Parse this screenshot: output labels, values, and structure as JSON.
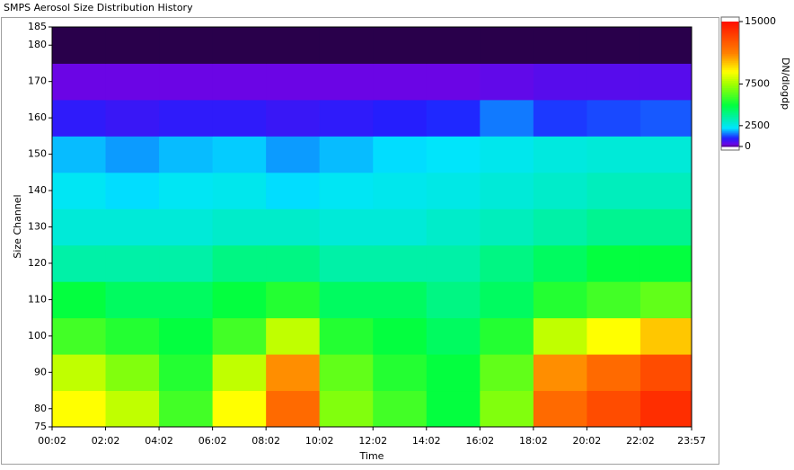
{
  "chart_data": {
    "type": "heatmap",
    "title": "SMPS Aerosol Size Distribution History",
    "x_label": "Time",
    "y_label": "Size Channel",
    "colorbar_label": "DN/dlogdp",
    "xlim": [
      2,
      1437
    ],
    "xticks": [
      {
        "value": 2,
        "label": "00:02"
      },
      {
        "value": 122,
        "label": "02:02"
      },
      {
        "value": 242,
        "label": "04:02"
      },
      {
        "value": 362,
        "label": "06:02"
      },
      {
        "value": 482,
        "label": "08:02"
      },
      {
        "value": 602,
        "label": "10:02"
      },
      {
        "value": 722,
        "label": "12:02"
      },
      {
        "value": 842,
        "label": "14:02"
      },
      {
        "value": 962,
        "label": "16:02"
      },
      {
        "value": 1082,
        "label": "18:02"
      },
      {
        "value": 1202,
        "label": "20:02"
      },
      {
        "value": 1322,
        "label": "22:02"
      },
      {
        "value": 1437,
        "label": "23:57"
      }
    ],
    "ylim": [
      75,
      185
    ],
    "yticks": [
      75,
      80,
      90,
      100,
      110,
      120,
      130,
      140,
      150,
      160,
      170,
      180,
      185
    ],
    "x_edges": [
      2,
      122,
      242,
      362,
      482,
      602,
      722,
      842,
      962,
      1082,
      1202,
      1322,
      1437
    ],
    "y_edges": [
      75,
      85,
      95,
      105,
      115,
      125,
      135,
      145,
      155,
      165,
      175,
      185
    ],
    "z": [
      [
        9000,
        8000,
        6000,
        9000,
        12000,
        7000,
        6000,
        5000,
        7000,
        12000,
        13000,
        14000
      ],
      [
        8000,
        7000,
        5500,
        8000,
        11000,
        6500,
        5500,
        5000,
        6500,
        11000,
        12000,
        13000
      ],
      [
        6000,
        5500,
        5000,
        6000,
        8000,
        5500,
        5000,
        4500,
        5500,
        8000,
        9000,
        10000
      ],
      [
        5000,
        4500,
        4500,
        5000,
        5500,
        4500,
        4500,
        4000,
        4500,
        5500,
        6000,
        6500
      ],
      [
        3500,
        3500,
        3500,
        4000,
        4000,
        3500,
        3500,
        3500,
        4000,
        4500,
        5000,
        5000
      ],
      [
        2800,
        2800,
        2800,
        3000,
        3000,
        2800,
        2800,
        3000,
        3200,
        3500,
        3800,
        3800
      ],
      [
        2400,
        2200,
        2400,
        2500,
        2200,
        2400,
        2500,
        2600,
        2800,
        3000,
        3200,
        3200
      ],
      [
        2000,
        1800,
        2000,
        2100,
        1800,
        2000,
        2200,
        2300,
        2500,
        2700,
        2800,
        2800
      ],
      [
        900,
        800,
        900,
        900,
        800,
        900,
        1000,
        1100,
        1600,
        1200,
        1300,
        1400
      ],
      [
        300,
        300,
        300,
        300,
        300,
        300,
        300,
        300,
        400,
        500,
        500,
        500
      ],
      [
        50,
        50,
        50,
        50,
        50,
        50,
        50,
        50,
        50,
        50,
        50,
        50
      ]
    ],
    "zlim": [
      0,
      15000
    ],
    "zticks": [
      0,
      2500,
      7500,
      15000
    ]
  }
}
